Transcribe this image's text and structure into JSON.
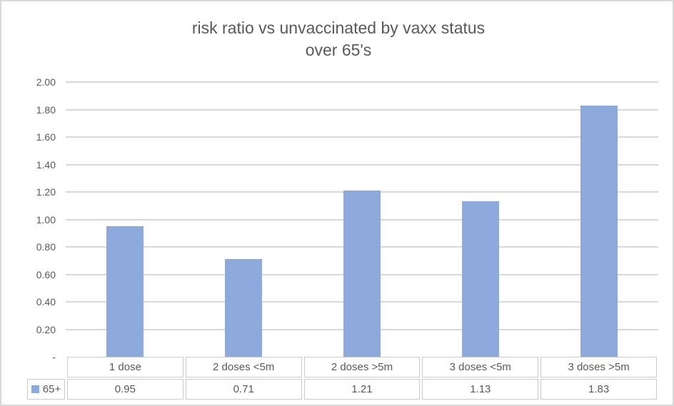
{
  "chart_data": {
    "type": "bar",
    "title": "risk ratio vs unvaccinated by vaxx status",
    "subtitle": "over 65's",
    "categories": [
      "1 dose",
      "2 doses <5m",
      "2 doses >5m",
      "3 doses <5m",
      "3 doses >5m"
    ],
    "series": [
      {
        "name": "65+",
        "values": [
          0.95,
          0.71,
          1.21,
          1.13,
          1.83
        ]
      }
    ],
    "value_labels": [
      "0.95",
      "0.71",
      "1.21",
      "1.13",
      "1.83"
    ],
    "ylim": [
      0,
      2
    ],
    "ytick_step": 0.2,
    "ytick_labels": [
      "-",
      "0.20",
      "0.40",
      "0.60",
      "0.80",
      "1.00",
      "1.20",
      "1.40",
      "1.60",
      "1.80",
      "2.00"
    ],
    "grid": true,
    "legend_position": "data-table-left"
  },
  "colors": {
    "bar": "#8EA9DB",
    "text": "#595959",
    "gridline": "#D9D9D9",
    "table_border": "#CBCBCB",
    "frame_border": "#D9D9D9",
    "background": "#FFFFFF"
  }
}
